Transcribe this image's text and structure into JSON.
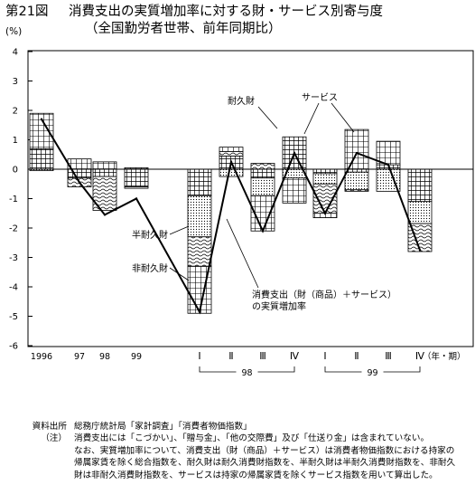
{
  "figure_no": "第21図",
  "title_line1": "消費支出の実質増加率に対する財・サービス別寄与度",
  "title_line2": "（全国勤労者世帯、前年同期比）",
  "chart_data": {
    "type": "stacked-bar-with-line",
    "unit_label": "(%)",
    "ylim": [
      -6,
      4
    ],
    "yticks": [
      4,
      3,
      2,
      1,
      0,
      -1,
      -2,
      -3,
      -4,
      -5,
      -6
    ],
    "axis_unit_label": "（年・期）",
    "categories": [
      "1996",
      "97",
      "98",
      "99",
      "Ⅰ",
      "Ⅱ",
      "Ⅲ",
      "Ⅳ",
      "Ⅰ",
      "Ⅱ",
      "Ⅲ",
      "Ⅳ"
    ],
    "year_groups": [
      {
        "label": "98",
        "from": 4,
        "to": 7
      },
      {
        "label": "99",
        "from": 8,
        "to": 11
      }
    ],
    "series": [
      {
        "name": "耐久財",
        "values": [
          0.7,
          -0.3,
          -0.25,
          -0.6,
          -0.9,
          0.45,
          -0.3,
          1.1,
          -0.15,
          -0.1,
          0.15,
          -1.1
        ]
      },
      {
        "name": "半耐久財",
        "values": [
          -0.05,
          0.0,
          0.0,
          -0.05,
          -1.4,
          -0.25,
          -0.6,
          -0.3,
          -0.35,
          -0.6,
          -0.75,
          -0.75
        ]
      },
      {
        "name": "非耐久財",
        "values": [
          0.0,
          -0.3,
          -1.15,
          0.0,
          -1.0,
          0.15,
          0.2,
          0.0,
          -1.0,
          -0.05,
          0.0,
          -0.95
        ]
      },
      {
        "name": "サービス",
        "values": [
          1.2,
          0.35,
          0.25,
          0.05,
          -1.6,
          0.15,
          -1.2,
          -0.85,
          -0.15,
          1.35,
          0.8,
          0.0
        ]
      }
    ],
    "line": {
      "name": "消費支出（財（商品）＋サービス）の実質増加率",
      "values": [
        1.7,
        -0.45,
        -1.55,
        -1.0,
        -4.85,
        0.25,
        -2.1,
        0.55,
        -1.5,
        0.55,
        0.15,
        -2.75
      ]
    },
    "annotations": [
      "耐久財",
      "サービス",
      "半耐久財",
      "非耐久財",
      "消費支出（財（商品）＋サービス）",
      "の実質増加率"
    ]
  },
  "notes": {
    "source_key": "資料出所",
    "source_text": "総務庁統計局「家計調査」「消費者物価指数」",
    "note_key": "（注）",
    "note_lines": [
      "消費支出には「こづかい」、「贈与金」、「他の交際費」及び「仕送り金」は含まれていない。",
      "なお、実質増加率について、消費支出（財（商品）＋サービス）は消費者物価指数における持家の",
      "帰属家賃を除く総合指数を、耐久財は耐久消費財指数を、半耐久財は半耐久消費財指数を、非耐久",
      "財は非耐久消費財指数を、サービスは持家の帰属家賃を除くサービス指数を用いて算出した。"
    ]
  }
}
